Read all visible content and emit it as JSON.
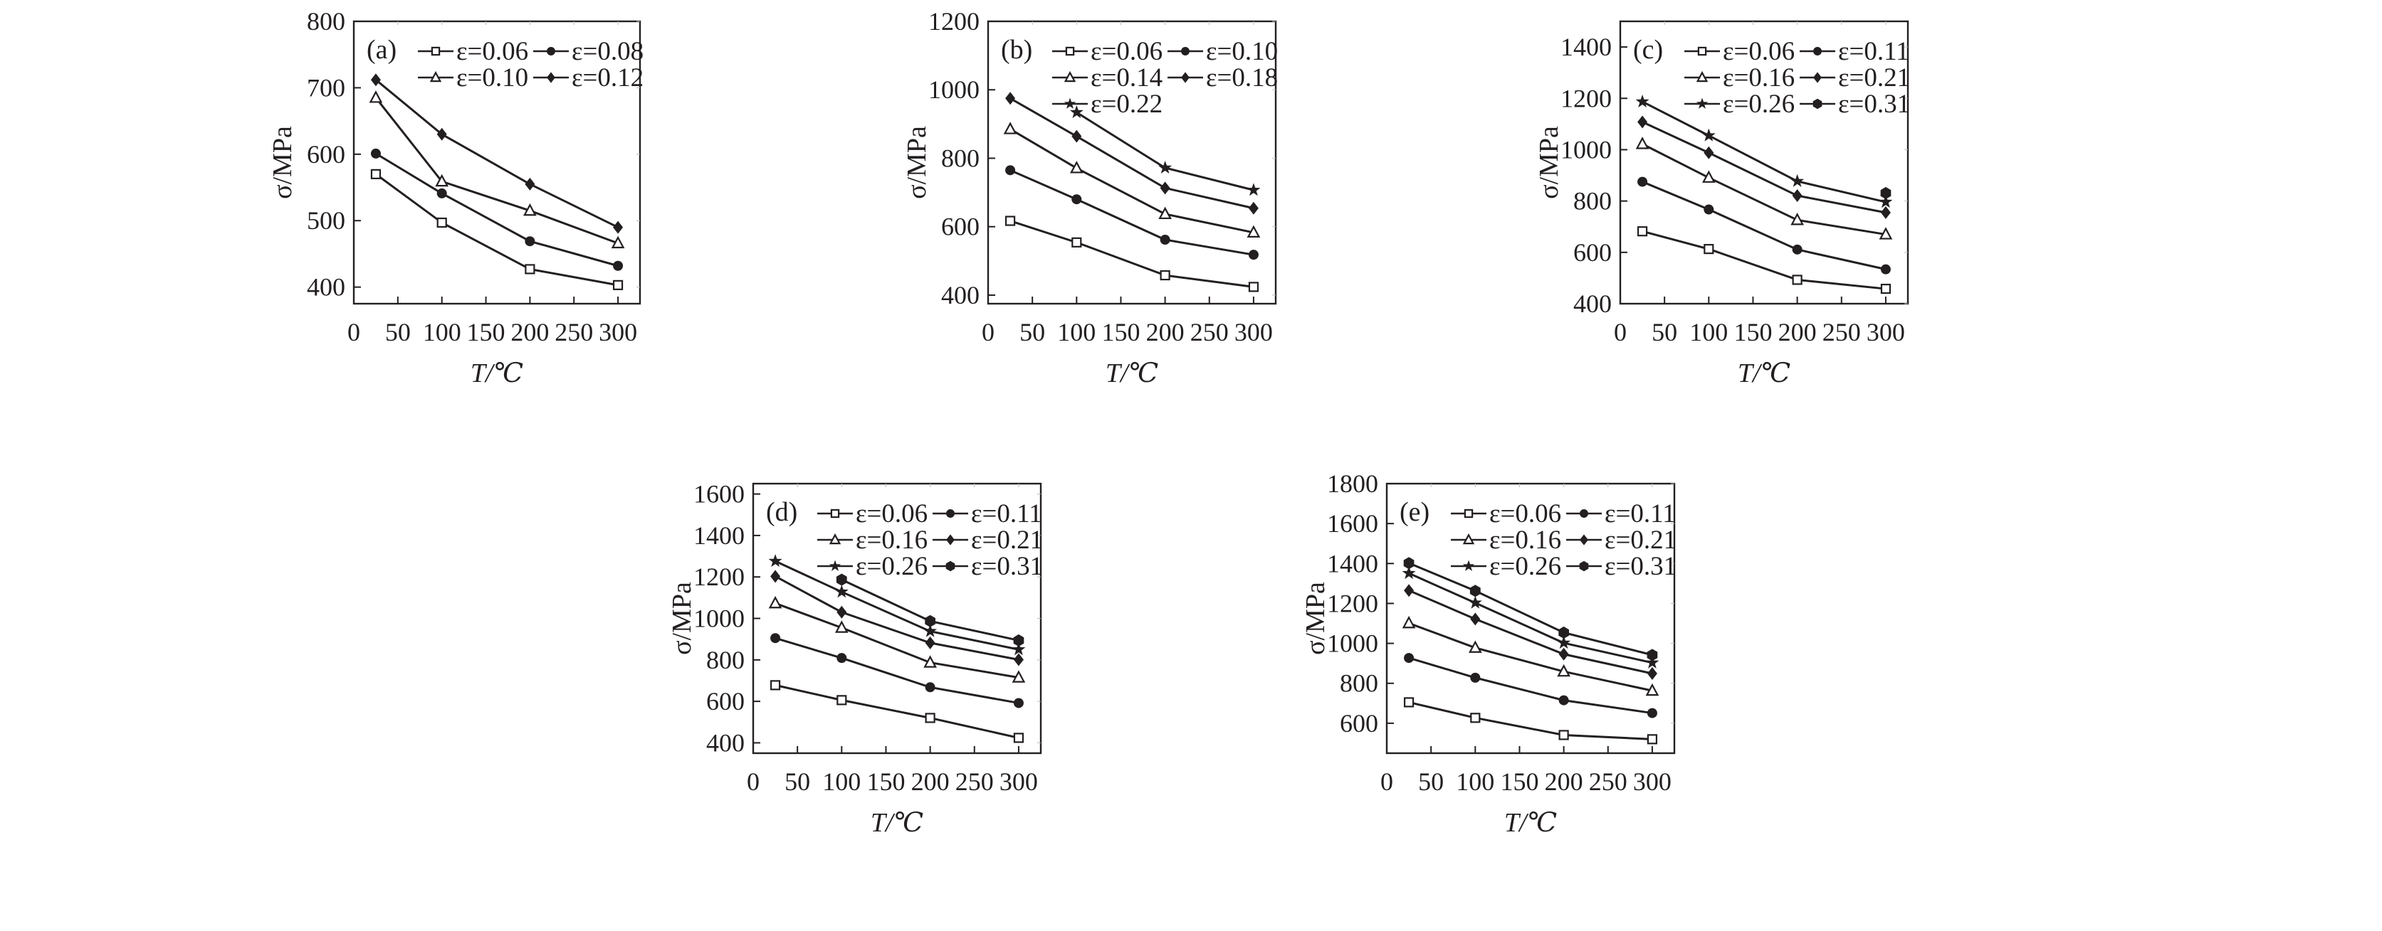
{
  "chart_data": [
    {
      "type": "line",
      "panel_label": "(a)",
      "xlabel": "T/℃",
      "ylabel": "σ/MPa",
      "xlim": [
        0,
        325
      ],
      "ylim": [
        375,
        800
      ],
      "xticks": [
        0,
        50,
        100,
        150,
        200,
        250,
        300
      ],
      "yticks": [
        400,
        500,
        600,
        700,
        800
      ],
      "x": [
        25,
        100,
        200,
        300
      ],
      "legend_position": "top-right",
      "series": [
        {
          "name": "ε=0.06",
          "marker": "square-open",
          "values": [
            570,
            497,
            427,
            403
          ]
        },
        {
          "name": "ε=0.08",
          "marker": "circle-filled",
          "values": [
            601,
            541,
            469,
            432
          ]
        },
        {
          "name": "ε=0.10",
          "marker": "triangle-open",
          "values": [
            685,
            559,
            515,
            466
          ]
        },
        {
          "name": "ε=0.12",
          "marker": "diamond-filled",
          "values": [
            712,
            630,
            555,
            490
          ]
        }
      ]
    },
    {
      "type": "line",
      "panel_label": "(b)",
      "xlabel": "T/℃",
      "ylabel": "σ/MPa",
      "xlim": [
        0,
        325
      ],
      "ylim": [
        375,
        1200
      ],
      "xticks": [
        0,
        50,
        100,
        150,
        200,
        250,
        300
      ],
      "yticks": [
        400,
        600,
        800,
        1000,
        1200
      ],
      "x": [
        25,
        100,
        200,
        300
      ],
      "legend_position": "top-right",
      "series": [
        {
          "name": "ε=0.06",
          "marker": "square-open",
          "values": [
            617,
            554,
            458,
            424
          ]
        },
        {
          "name": "ε=0.10",
          "marker": "circle-filled",
          "values": [
            765,
            680,
            562,
            518
          ]
        },
        {
          "name": "ε=0.14",
          "marker": "triangle-open",
          "values": [
            885,
            771,
            637,
            583
          ]
        },
        {
          "name": "ε=0.18",
          "marker": "diamond-filled",
          "values": [
            975,
            864,
            713,
            654
          ]
        },
        {
          "name": "ε=0.22",
          "marker": "star-filled",
          "values": [
            null,
            934,
            772,
            707
          ]
        }
      ]
    },
    {
      "type": "line",
      "panel_label": "(c)",
      "xlabel": "T/℃",
      "ylabel": "σ/MPa",
      "xlim": [
        0,
        325
      ],
      "ylim": [
        400,
        1500
      ],
      "xticks": [
        0,
        50,
        100,
        150,
        200,
        250,
        300
      ],
      "yticks": [
        400,
        600,
        800,
        1000,
        1200,
        1400
      ],
      "x": [
        25,
        100,
        200,
        300
      ],
      "legend_position": "top-right",
      "series": [
        {
          "name": "ε=0.06",
          "marker": "square-open",
          "values": [
            682,
            613,
            493,
            458
          ]
        },
        {
          "name": "ε=0.11",
          "marker": "circle-filled",
          "values": [
            875,
            767,
            611,
            534
          ]
        },
        {
          "name": "ε=0.16",
          "marker": "triangle-open",
          "values": [
            1022,
            891,
            726,
            670
          ]
        },
        {
          "name": "ε=0.21",
          "marker": "diamond-filled",
          "values": [
            1108,
            988,
            821,
            755
          ]
        },
        {
          "name": "ε=0.26",
          "marker": "star-filled",
          "values": [
            1187,
            1055,
            877,
            796
          ]
        },
        {
          "name": "ε=0.31",
          "marker": "hexagon-filled",
          "values": [
            null,
            null,
            null,
            831
          ]
        }
      ]
    },
    {
      "type": "line",
      "panel_label": "(d)",
      "xlabel": "T/℃",
      "ylabel": "σ/MPa",
      "xlim": [
        0,
        325
      ],
      "ylim": [
        350,
        1650
      ],
      "xticks": [
        0,
        50,
        100,
        150,
        200,
        250,
        300
      ],
      "yticks": [
        400,
        600,
        800,
        1000,
        1200,
        1400,
        1600
      ],
      "x": [
        25,
        100,
        200,
        300
      ],
      "legend_position": "top-right",
      "series": [
        {
          "name": "ε=0.06",
          "marker": "square-open",
          "values": [
            678,
            606,
            520,
            424
          ]
        },
        {
          "name": "ε=0.11",
          "marker": "circle-filled",
          "values": [
            905,
            809,
            668,
            592
          ]
        },
        {
          "name": "ε=0.16",
          "marker": "triangle-open",
          "values": [
            1073,
            955,
            787,
            715
          ]
        },
        {
          "name": "ε=0.21",
          "marker": "diamond-filled",
          "values": [
            1203,
            1030,
            882,
            801
          ]
        },
        {
          "name": "ε=0.26",
          "marker": "star-filled",
          "values": [
            1276,
            1128,
            938,
            850
          ]
        },
        {
          "name": "ε=0.31",
          "marker": "hexagon-filled",
          "values": [
            null,
            1187,
            987,
            894
          ]
        }
      ]
    },
    {
      "type": "line",
      "panel_label": "(e)",
      "xlabel": "T/℃",
      "ylabel": "σ/MPa",
      "xlim": [
        0,
        325
      ],
      "ylim": [
        450,
        1800
      ],
      "xticks": [
        0,
        50,
        100,
        150,
        200,
        250,
        300
      ],
      "yticks": [
        600,
        800,
        1000,
        1200,
        1400,
        1600,
        1800
      ],
      "x": [
        25,
        100,
        200,
        300
      ],
      "legend_position": "top-right",
      "series": [
        {
          "name": "ε=0.06",
          "marker": "square-open",
          "values": [
            705,
            627,
            541,
            520
          ]
        },
        {
          "name": "ε=0.11",
          "marker": "circle-filled",
          "values": [
            927,
            828,
            715,
            651
          ]
        },
        {
          "name": "ε=0.16",
          "marker": "triangle-open",
          "values": [
            1101,
            978,
            859,
            763
          ]
        },
        {
          "name": "ε=0.21",
          "marker": "diamond-filled",
          "values": [
            1265,
            1122,
            946,
            849
          ]
        },
        {
          "name": "ε=0.26",
          "marker": "star-filled",
          "values": [
            1351,
            1203,
            1002,
            903
          ]
        },
        {
          "name": "ε=0.31",
          "marker": "hexagon-filled",
          "values": [
            1402,
            1263,
            1054,
            942
          ]
        }
      ]
    }
  ],
  "colors": {
    "ink": "#231f20",
    "background": "#ffffff"
  }
}
